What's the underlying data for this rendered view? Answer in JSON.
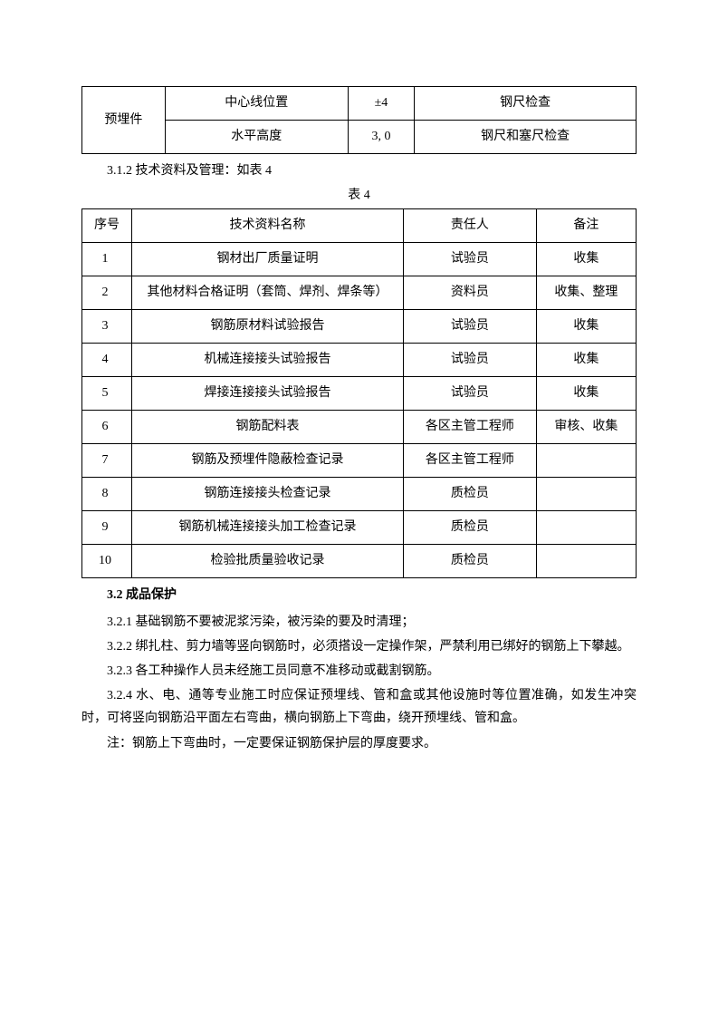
{
  "table1": {
    "rowspan_label": "预埋件",
    "rows": [
      {
        "item": "中心线位置",
        "tol": "±4",
        "check": "钢尺检查"
      },
      {
        "item": "水平高度",
        "tol": "3, 0",
        "check": "钢尺和塞尺检查"
      }
    ]
  },
  "caption312": "3.1.2 技术资料及管理：如表 4",
  "table4_label": "表 4",
  "table2": {
    "headers": {
      "seq": "序号",
      "name": "技术资料名称",
      "person": "责任人",
      "note": "备注"
    },
    "rows": [
      {
        "seq": "1",
        "name": "钢材出厂质量证明",
        "person": "试验员",
        "note": "收集"
      },
      {
        "seq": "2",
        "name": "其他材料合格证明（套筒、焊剂、焊条等）",
        "person": "资料员",
        "note": "收集、整理"
      },
      {
        "seq": "3",
        "name": "钢筋原材料试验报告",
        "person": "试验员",
        "note": "收集"
      },
      {
        "seq": "4",
        "name": "机械连接接头试验报告",
        "person": "试验员",
        "note": "收集"
      },
      {
        "seq": "5",
        "name": "焊接连接接头试验报告",
        "person": "试验员",
        "note": "收集"
      },
      {
        "seq": "6",
        "name": "钢筋配料表",
        "person": "各区主管工程师",
        "note": "审核、收集"
      },
      {
        "seq": "7",
        "name": "钢筋及预埋件隐蔽检查记录",
        "person": "各区主管工程师",
        "note": ""
      },
      {
        "seq": "8",
        "name": "钢筋连接接头检查记录",
        "person": "质检员",
        "note": ""
      },
      {
        "seq": "9",
        "name": "钢筋机械连接接头加工检查记录",
        "person": "质检员",
        "note": ""
      },
      {
        "seq": "10",
        "name": "检验批质量验收记录",
        "person": "质检员",
        "note": ""
      }
    ]
  },
  "section32": "3.2 成品保护",
  "p321": "3.2.1 基础钢筋不要被泥浆污染，被污染的要及时清理；",
  "p322": "3.2.2 绑扎柱、剪力墙等竖向钢筋时，必须搭设一定操作架，严禁利用已绑好的钢筋上下攀越。",
  "p323": "3.2.3 各工种操作人员未经施工员同意不准移动或截割钢筋。",
  "p324": "3.2.4 水、电、通等专业施工时应保证预埋线、管和盒或其他设施时等位置准确，如发生冲突时，可将竖向钢筋沿平面左右弯曲，横向钢筋上下弯曲，绕开预埋线、管和盒。",
  "pnote": "注：钢筋上下弯曲时，一定要保证钢筋保护层的厚度要求。"
}
